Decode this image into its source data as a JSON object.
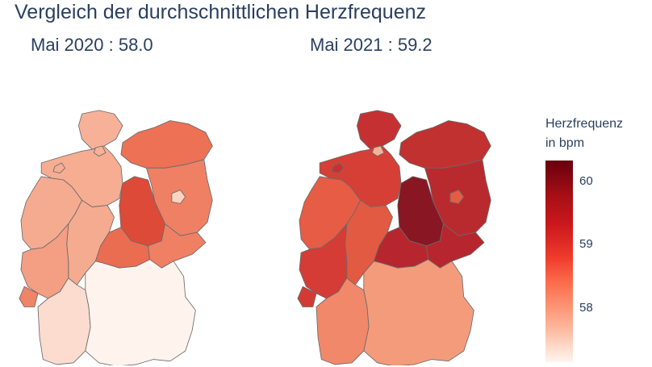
{
  "title": "Vergleich der durchschnittlichen Herzfrequenz",
  "maps": [
    {
      "label": "Mai 2020 : 58.0",
      "period": "Mai 2020",
      "mean": 58.0
    },
    {
      "label": "Mai 2021 : 59.2",
      "period": "Mai 2021",
      "mean": 59.2
    }
  ],
  "legend": {
    "title_line1": "Herzfrequenz",
    "title_line2": "in bpm",
    "ticks": [
      "60",
      "59",
      "58"
    ],
    "colorscale": [
      "#fff5f0",
      "#fee0d2",
      "#fcbba1",
      "#fc9272",
      "#fb6a4a",
      "#ef3b2c",
      "#cb181d",
      "#a50f15",
      "#67000d"
    ]
  },
  "colors": {
    "2020": {
      "Schleswig-Holstein": "#f7b198",
      "Hamburg": "#f7b198",
      "Mecklenburg-Vorpommern": "#ec7155",
      "Niedersachsen": "#f6ad92",
      "Bremen": "#f6ad92",
      "Brandenburg": "#ef8063",
      "Berlin": "#fcd2c0",
      "Sachsen-Anhalt": "#dd4a38",
      "Nordrhein-Westfalen": "#f5ab90",
      "Hessen": "#f5ab90",
      "Thueringen": "#ea6d52",
      "Sachsen": "#ef8063",
      "Rheinland-Pfalz": "#f49e84",
      "Saarland": "#ef8467",
      "Baden-Wuerttemberg": "#fbdccf",
      "Bayern": "#fff3ee"
    },
    "2021": {
      "Schleswig-Holstein": "#c53132",
      "Hamburg": "#f7b198",
      "Mecklenburg-Vorpommern": "#c13130",
      "Niedersachsen": "#d53f36",
      "Bremen": "#c53132",
      "Brandenburg": "#b92a2f",
      "Berlin": "#e45c44",
      "Sachsen-Anhalt": "#891723",
      "Nordrhein-Westfalen": "#e65c45",
      "Hessen": "#e25a42",
      "Thueringen": "#b7262e",
      "Sachsen": "#b7262e",
      "Rheinland-Pfalz": "#d43c35",
      "Saarland": "#d23b34",
      "Baden-Wuerttemberg": "#f1886a",
      "Bayern": "#f49b7c"
    }
  }
}
